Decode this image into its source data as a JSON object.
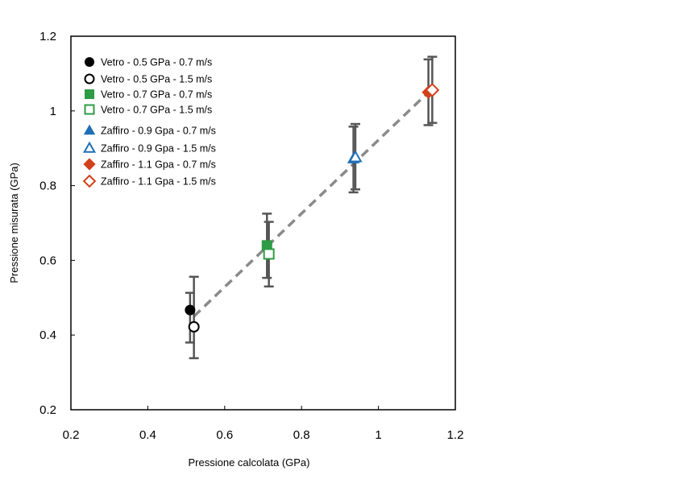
{
  "chart_data": {
    "type": "scatter",
    "xlabel": "Pressione calcolata (GPa)",
    "ylabel": "Pressione misurata  (GPa)",
    "xlim": [
      0.2,
      1.2
    ],
    "ylim": [
      0.2,
      1.2
    ],
    "x_ticks": [
      "0.2",
      "0.4",
      "0.6",
      "0.8",
      "1",
      "1.2"
    ],
    "y_ticks": [
      "0.2",
      "0.4",
      "0.6",
      "0.8",
      "1",
      "1.2"
    ],
    "grid": false,
    "legend_position": "top-left",
    "trend_line": {
      "style": "dashed",
      "color": "#8a8a8a",
      "x": [
        0.52,
        1.13
      ],
      "y": [
        0.45,
        1.05
      ]
    },
    "series": [
      {
        "name": "Vetro - 0.5 GPa - 0.7 m/s",
        "marker": "circle",
        "filled": true,
        "color": "#000000",
        "x": 0.51,
        "y": 0.467,
        "err_low": 0.38,
        "err_high": 0.513
      },
      {
        "name": "Vetro - 0.5 GPa - 1.5 m/s",
        "marker": "circle",
        "filled": false,
        "color": "#000000",
        "x": 0.52,
        "y": 0.422,
        "err_low": 0.338,
        "err_high": 0.556
      },
      {
        "name": "Vetro - 0.7 GPa - 0.7 m/s",
        "marker": "square",
        "filled": true,
        "color": "#2e9b46",
        "x": 0.71,
        "y": 0.64,
        "err_low": 0.553,
        "err_high": 0.725
      },
      {
        "name": "Vetro - 0.7 GPa - 1.5 m/s",
        "marker": "square",
        "filled": false,
        "color": "#2e9b46",
        "x": 0.715,
        "y": 0.617,
        "err_low": 0.53,
        "err_high": 0.703
      },
      {
        "name": "Zaffiro - 0.9 Gpa - 0.7 m/s",
        "marker": "triangle",
        "filled": true,
        "color": "#1f6fb5",
        "x": 0.935,
        "y": 0.872,
        "err_low": 0.782,
        "err_high": 0.958
      },
      {
        "name": "Zaffiro - 0.9 Gpa - 1.5 m/s",
        "marker": "triangle",
        "filled": false,
        "color": "#1f6fb5",
        "x": 0.94,
        "y": 0.876,
        "err_low": 0.79,
        "err_high": 0.965
      },
      {
        "name": "Zaffiro - 1.1 Gpa - 0.7 m/s",
        "marker": "diamond",
        "filled": true,
        "color": "#d0401b",
        "x": 1.13,
        "y": 1.05,
        "err_low": 0.962,
        "err_high": 1.138
      },
      {
        "name": "Zaffiro - 1.1 Gpa - 1.5 m/s",
        "marker": "diamond",
        "filled": false,
        "color": "#d0401b",
        "x": 1.14,
        "y": 1.056,
        "err_low": 0.968,
        "err_high": 1.145
      }
    ]
  }
}
